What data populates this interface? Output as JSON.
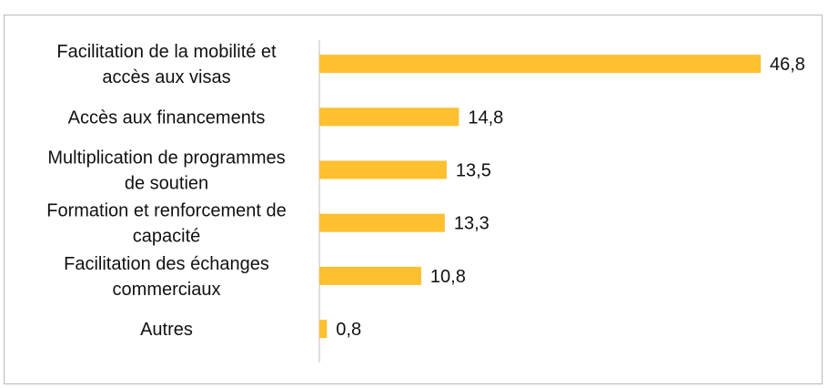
{
  "chart_data": {
    "type": "bar",
    "orientation": "horizontal",
    "categories": [
      [
        "Facilitation de la mobilité et",
        "accès aux visas"
      ],
      [
        "Accès aux financements"
      ],
      [
        "Multiplication de programmes",
        "de soutien"
      ],
      [
        "Formation et renforcement de",
        "capacité"
      ],
      [
        "Facilitation des échanges",
        "commerciaux"
      ],
      [
        "Autres"
      ]
    ],
    "values": [
      46.8,
      14.8,
      13.5,
      13.3,
      10.8,
      0.8
    ],
    "value_labels": [
      "46,8",
      "14,8",
      "13,5",
      "13,3",
      "10,8",
      "0,8"
    ],
    "bar_color": "#FDC02F",
    "axis_color": "#bfbfbf",
    "grid": false,
    "legend": "none"
  }
}
